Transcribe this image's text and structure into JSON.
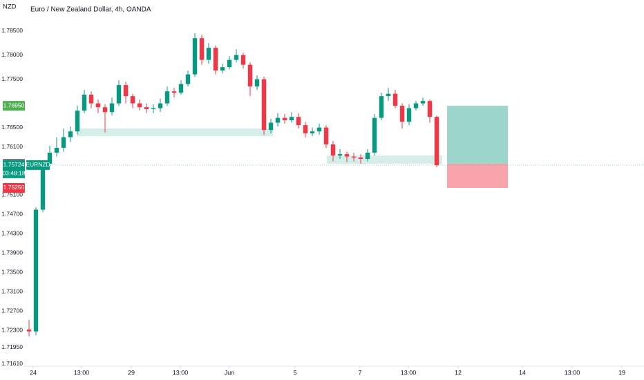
{
  "chart_data": {
    "type": "candlestick",
    "title": "Euro / New Zealand Dollar, 4h, OANDA",
    "currency": "NZD",
    "symbol": "EURNZD",
    "countdown": "03:48:18",
    "up_color": "#089981",
    "down_color": "#f23645",
    "ylim": [
      1.7156,
      1.7914
    ],
    "yticks": [
      {
        "value": 1.785,
        "label": "1.78500"
      },
      {
        "value": 1.78,
        "label": "1.78000"
      },
      {
        "value": 1.775,
        "label": "1.77500"
      },
      {
        "value": 1.765,
        "label": "1.76500"
      },
      {
        "value": 1.761,
        "label": "1.76100"
      },
      {
        "value": 1.751,
        "label": "1.75100"
      },
      {
        "value": 1.747,
        "label": "1.74700"
      },
      {
        "value": 1.743,
        "label": "1.74300"
      },
      {
        "value": 1.739,
        "label": "1.73900"
      },
      {
        "value": 1.735,
        "label": "1.73500"
      },
      {
        "value": 1.731,
        "label": "1.73100"
      },
      {
        "value": 1.727,
        "label": "1.72700"
      },
      {
        "value": 1.723,
        "label": "1.72300"
      },
      {
        "value": 1.7195,
        "label": "1.71950"
      },
      {
        "value": 1.7161,
        "label": "1.71610"
      }
    ],
    "xlim": [
      -0.8,
      89
    ],
    "xticks": [
      {
        "value": 0.6,
        "label": "24"
      },
      {
        "value": 7.6,
        "label": "13:00"
      },
      {
        "value": 14.8,
        "label": "29"
      },
      {
        "value": 21.9,
        "label": "13:00"
      },
      {
        "value": 29,
        "label": "Jun"
      },
      {
        "value": 38.5,
        "label": "5"
      },
      {
        "value": 47.9,
        "label": "7"
      },
      {
        "value": 54.9,
        "label": "13:00"
      },
      {
        "value": 62.1,
        "label": "12"
      },
      {
        "value": 71.4,
        "label": "14"
      },
      {
        "value": 78.6,
        "label": "13:00"
      },
      {
        "value": 85.8,
        "label": "19"
      }
    ],
    "candles": [
      [
        1.7232,
        1.7252,
        1.7218,
        1.7228
      ],
      [
        1.7228,
        1.7485,
        1.722,
        1.748
      ],
      [
        1.748,
        1.7582,
        1.7475,
        1.7575
      ],
      [
        1.7575,
        1.7612,
        1.757,
        1.7598
      ],
      [
        1.7598,
        1.763,
        1.759,
        1.7608
      ],
      [
        1.7608,
        1.7648,
        1.76,
        1.763
      ],
      [
        1.763,
        1.7652,
        1.762,
        1.7642
      ],
      [
        1.7642,
        1.7695,
        1.7635,
        1.7685
      ],
      [
        1.7685,
        1.7728,
        1.768,
        1.7718
      ],
      [
        1.7718,
        1.7725,
        1.769,
        1.77
      ],
      [
        1.77,
        1.7708,
        1.768,
        1.7692
      ],
      [
        1.7692,
        1.7698,
        1.764,
        1.7682
      ],
      [
        1.7682,
        1.7712,
        1.7675,
        1.77
      ],
      [
        1.77,
        1.7748,
        1.7695,
        1.7738
      ],
      [
        1.7738,
        1.7745,
        1.77,
        1.7715
      ],
      [
        1.7715,
        1.772,
        1.769,
        1.77
      ],
      [
        1.77,
        1.7708,
        1.7685,
        1.7692
      ],
      [
        1.7692,
        1.77,
        1.768,
        1.7688
      ],
      [
        1.7688,
        1.7698,
        1.768,
        1.769
      ],
      [
        1.769,
        1.771,
        1.7682,
        1.77
      ],
      [
        1.77,
        1.7735,
        1.7695,
        1.7725
      ],
      [
        1.7725,
        1.7732,
        1.7712,
        1.7722
      ],
      [
        1.7722,
        1.7748,
        1.7718,
        1.774
      ],
      [
        1.774,
        1.7768,
        1.7735,
        1.776
      ],
      [
        1.776,
        1.7845,
        1.7755,
        1.7835
      ],
      [
        1.7835,
        1.7842,
        1.778,
        1.779
      ],
      [
        1.779,
        1.7825,
        1.7782,
        1.7815
      ],
      [
        1.7815,
        1.782,
        1.776,
        1.7768
      ],
      [
        1.7768,
        1.7782,
        1.7762,
        1.7775
      ],
      [
        1.7775,
        1.7798,
        1.777,
        1.779
      ],
      [
        1.779,
        1.7812,
        1.7785,
        1.78
      ],
      [
        1.78,
        1.7805,
        1.7772,
        1.778
      ],
      [
        1.778,
        1.7785,
        1.7715,
        1.7735
      ],
      [
        1.7735,
        1.7758,
        1.7728,
        1.775
      ],
      [
        1.775,
        1.7755,
        1.7635,
        1.7645
      ],
      [
        1.7645,
        1.7668,
        1.7638,
        1.766
      ],
      [
        1.766,
        1.768,
        1.7652,
        1.767
      ],
      [
        1.767,
        1.7678,
        1.7658,
        1.7665
      ],
      [
        1.7665,
        1.7682,
        1.766,
        1.7672
      ],
      [
        1.7672,
        1.768,
        1.7648,
        1.7655
      ],
      [
        1.7655,
        1.7662,
        1.763,
        1.7638
      ],
      [
        1.7638,
        1.765,
        1.7632,
        1.7642
      ],
      [
        1.7642,
        1.7658,
        1.7635,
        1.765
      ],
      [
        1.765,
        1.7655,
        1.7608,
        1.7615
      ],
      [
        1.7615,
        1.7622,
        1.758,
        1.7592
      ],
      [
        1.7592,
        1.7605,
        1.7585,
        1.7595
      ],
      [
        1.7595,
        1.76,
        1.7578,
        1.759
      ],
      [
        1.759,
        1.7598,
        1.758,
        1.7588
      ],
      [
        1.7588,
        1.7595,
        1.7575,
        1.7585
      ],
      [
        1.7585,
        1.7605,
        1.758,
        1.7598
      ],
      [
        1.7598,
        1.7678,
        1.7592,
        1.767
      ],
      [
        1.767,
        1.7722,
        1.7665,
        1.7715
      ],
      [
        1.7715,
        1.7732,
        1.7705,
        1.772
      ],
      [
        1.772,
        1.7728,
        1.769,
        1.7695
      ],
      [
        1.7695,
        1.77,
        1.7648,
        1.7662
      ],
      [
        1.7662,
        1.7698,
        1.7655,
        1.769
      ],
      [
        1.769,
        1.7705,
        1.7685,
        1.77
      ],
      [
        1.77,
        1.7712,
        1.7695,
        1.7705
      ],
      [
        1.7705,
        1.7708,
        1.766,
        1.7672
      ],
      [
        1.7672,
        1.7675,
        1.7568,
        1.7572
      ]
    ],
    "zones": [
      {
        "x": [
          7,
          35.3
        ],
        "y": [
          1.7632,
          1.7648
        ]
      },
      {
        "x": [
          43.1,
          59.8
        ],
        "y": [
          1.7575,
          1.7592
        ]
      }
    ],
    "position": {
      "x": [
        60.5,
        69.3
      ],
      "target": {
        "value": 1.7695,
        "label": "1.76950"
      },
      "entry": {
        "value": 1.7575,
        "label": "1.75750"
      },
      "stop": {
        "value": 1.7525,
        "label": "1.75250"
      }
    },
    "last_price": {
      "value": 1.75724,
      "label": "1.75724"
    }
  }
}
